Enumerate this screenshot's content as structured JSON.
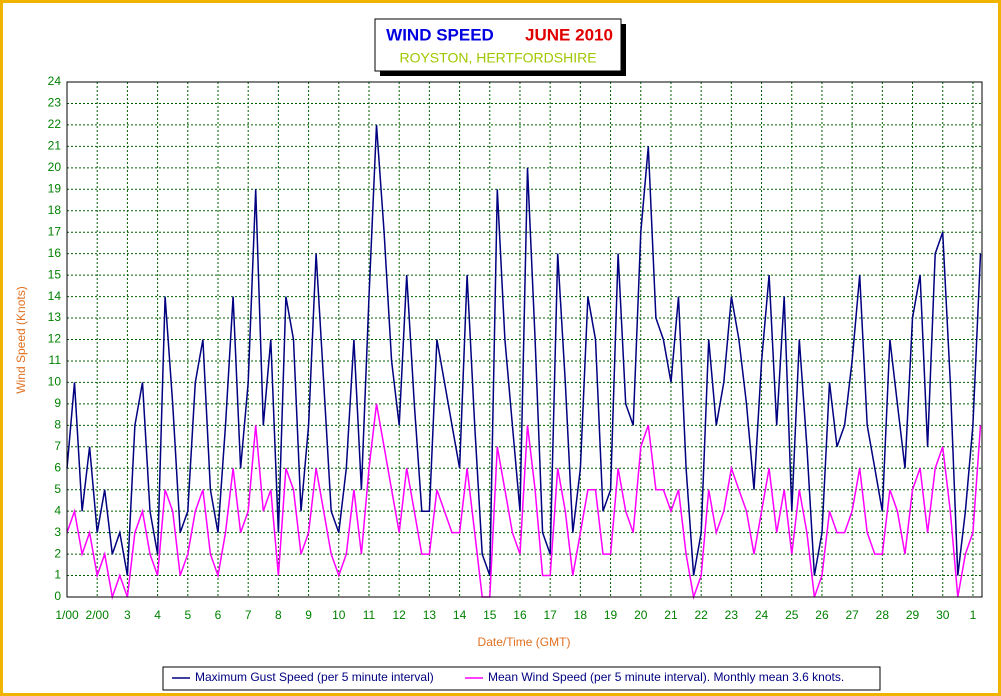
{
  "chart_data": {
    "type": "line",
    "title": "WIND SPEED",
    "title_date": "JUNE 2010",
    "subtitle": "ROYSTON, HERTFORDSHIRE",
    "ylabel": "Wind Speed (Knots)",
    "xlabel": "Date/Time (GMT)",
    "grid": true,
    "ylim": [
      0,
      24
    ],
    "yticks": [
      0,
      1,
      2,
      3,
      4,
      5,
      6,
      7,
      8,
      9,
      10,
      11,
      12,
      13,
      14,
      15,
      16,
      17,
      18,
      19,
      20,
      21,
      22,
      23,
      24
    ],
    "xlim": [
      1,
      31.3
    ],
    "xticks": [
      {
        "value": 1,
        "label": "1/00"
      },
      {
        "value": 2,
        "label": "2/00"
      },
      3,
      4,
      5,
      6,
      7,
      8,
      9,
      10,
      11,
      12,
      13,
      14,
      15,
      16,
      17,
      18,
      19,
      20,
      21,
      22,
      23,
      24,
      25,
      26,
      27,
      28,
      29,
      30,
      {
        "value": 31,
        "label": "1"
      }
    ],
    "x": [
      1,
      1.25,
      1.5,
      1.75,
      2,
      2.25,
      2.5,
      2.75,
      3,
      3.25,
      3.5,
      3.75,
      4,
      4.25,
      4.5,
      4.75,
      5,
      5.25,
      5.5,
      5.75,
      6,
      6.25,
      6.5,
      6.75,
      7,
      7.25,
      7.5,
      7.75,
      8,
      8.25,
      8.5,
      8.75,
      9,
      9.25,
      9.5,
      9.75,
      10,
      10.25,
      10.5,
      10.75,
      11,
      11.25,
      11.5,
      11.75,
      12,
      12.25,
      12.5,
      12.75,
      13,
      13.25,
      13.5,
      13.75,
      14,
      14.25,
      14.5,
      14.75,
      15,
      15.25,
      15.5,
      15.75,
      16,
      16.25,
      16.5,
      16.75,
      17,
      17.25,
      17.5,
      17.75,
      18,
      18.25,
      18.5,
      18.75,
      19,
      19.25,
      19.5,
      19.75,
      20,
      20.25,
      20.5,
      20.75,
      21,
      21.25,
      21.5,
      21.75,
      22,
      22.25,
      22.5,
      22.75,
      23,
      23.25,
      23.5,
      23.75,
      24,
      24.25,
      24.5,
      24.75,
      25,
      25.25,
      25.5,
      25.75,
      26,
      26.25,
      26.5,
      26.75,
      27,
      27.25,
      27.5,
      27.75,
      28,
      28.25,
      28.5,
      28.75,
      29,
      29.25,
      29.5,
      29.75,
      30,
      30.25,
      30.5,
      30.75,
      31,
      31.25
    ],
    "series": [
      {
        "name": "Maximum Gust Speed (per 5 minute interval)",
        "color": "#000080",
        "values": [
          6,
          10,
          4,
          7,
          3,
          5,
          2,
          3,
          1,
          8,
          10,
          4,
          2,
          14,
          9,
          3,
          4,
          10,
          12,
          5,
          3,
          8,
          14,
          6,
          10,
          19,
          8,
          12,
          3,
          14,
          12,
          4,
          8,
          16,
          10,
          4,
          3,
          6,
          12,
          5,
          14,
          22,
          17,
          11,
          8,
          15,
          9,
          4,
          4,
          12,
          10,
          8,
          6,
          15,
          8,
          2,
          1,
          19,
          12,
          8,
          4,
          20,
          12,
          3,
          2,
          16,
          10,
          3,
          6,
          14,
          12,
          4,
          5,
          16,
          9,
          8,
          17,
          21,
          13,
          12,
          10,
          14,
          6,
          1,
          3,
          12,
          8,
          10,
          14,
          12,
          9,
          5,
          11,
          15,
          8,
          14,
          4,
          12,
          7,
          1,
          3,
          10,
          7,
          8,
          11,
          15,
          8,
          6,
          4,
          12,
          9,
          6,
          13,
          15,
          7,
          16,
          17,
          10,
          1,
          4,
          8,
          16
        ]
      },
      {
        "name": "Mean Wind Speed (per 5 minute interval). Monthly mean 3.6 knots.",
        "color": "#ff00ff",
        "values": [
          3,
          4,
          2,
          3,
          1,
          2,
          0,
          1,
          0,
          3,
          4,
          2,
          1,
          5,
          4,
          1,
          2,
          4,
          5,
          2,
          1,
          3,
          6,
          3,
          4,
          8,
          4,
          5,
          1,
          6,
          5,
          2,
          3,
          6,
          4,
          2,
          1,
          2,
          5,
          2,
          6,
          9,
          7,
          5,
          3,
          6,
          4,
          2,
          2,
          5,
          4,
          3,
          3,
          6,
          3,
          0,
          0,
          7,
          5,
          3,
          2,
          8,
          5,
          1,
          1,
          6,
          4,
          1,
          3,
          5,
          5,
          2,
          2,
          6,
          4,
          3,
          7,
          8,
          5,
          5,
          4,
          5,
          2,
          0,
          1,
          5,
          3,
          4,
          6,
          5,
          4,
          2,
          4,
          6,
          3,
          5,
          2,
          5,
          3,
          0,
          1,
          4,
          3,
          3,
          4,
          6,
          3,
          2,
          2,
          5,
          4,
          2,
          5,
          6,
          3,
          6,
          7,
          4,
          0,
          2,
          3,
          8
        ]
      }
    ]
  }
}
